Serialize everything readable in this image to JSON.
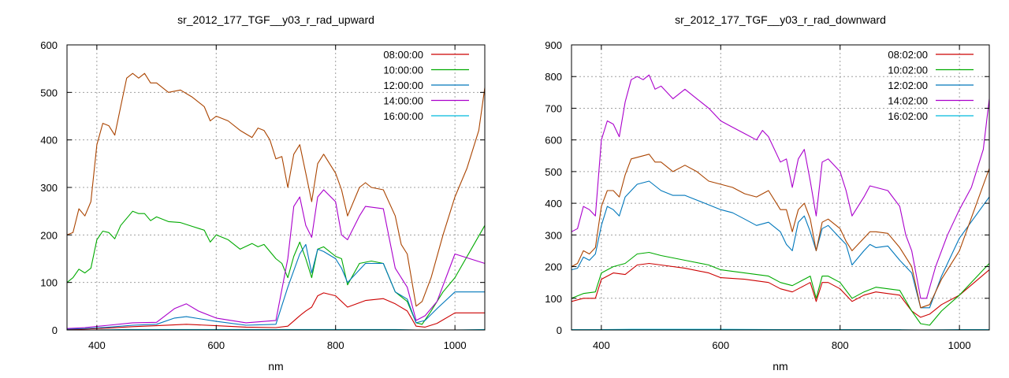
{
  "chart_data": [
    {
      "type": "line",
      "title": "sr_2012_177_TGF__y03_r_rad_upward",
      "xlabel": "nm",
      "ylabel": "",
      "xlim": [
        350,
        1050
      ],
      "ylim": [
        0,
        600
      ],
      "xticks": [
        400,
        600,
        800,
        1000
      ],
      "yticks": [
        0,
        100,
        200,
        300,
        400,
        500,
        600
      ],
      "grid": true,
      "legend": "top-right",
      "series": [
        {
          "name": "08:00:00",
          "color": "#cc0000",
          "x": [
            350,
            380,
            420,
            460,
            500,
            550,
            600,
            650,
            700,
            720,
            740,
            750,
            760,
            770,
            780,
            800,
            820,
            850,
            880,
            900,
            920,
            935,
            950,
            970,
            1000,
            1050
          ],
          "y": [
            1,
            2,
            4,
            7,
            9,
            12,
            9,
            6,
            5,
            8,
            30,
            40,
            48,
            72,
            78,
            72,
            48,
            62,
            66,
            55,
            40,
            8,
            6,
            14,
            36,
            36
          ]
        },
        {
          "name": "10:00:00",
          "color": "#00aa00",
          "x": [
            350,
            360,
            370,
            380,
            390,
            400,
            410,
            420,
            430,
            440,
            460,
            470,
            480,
            490,
            500,
            520,
            540,
            560,
            580,
            590,
            600,
            620,
            640,
            660,
            670,
            680,
            700,
            710,
            720,
            730,
            740,
            750,
            760,
            770,
            780,
            800,
            810,
            820,
            840,
            860,
            880,
            900,
            910,
            920,
            935,
            945,
            960,
            980,
            1000,
            1050
          ],
          "y": [
            100,
            110,
            128,
            120,
            130,
            190,
            208,
            205,
            192,
            220,
            250,
            245,
            245,
            230,
            238,
            228,
            226,
            218,
            210,
            185,
            200,
            190,
            170,
            182,
            175,
            180,
            150,
            140,
            110,
            155,
            185,
            150,
            110,
            170,
            175,
            155,
            150,
            95,
            140,
            145,
            140,
            80,
            70,
            60,
            15,
            12,
            40,
            80,
            110,
            220
          ]
        },
        {
          "name": "12:00:00",
          "color": "#0077bb",
          "x": [
            350,
            380,
            420,
            460,
            500,
            530,
            550,
            570,
            600,
            650,
            700,
            720,
            740,
            750,
            760,
            770,
            780,
            800,
            810,
            820,
            850,
            880,
            900,
            920,
            935,
            950,
            970,
            1000,
            1050
          ],
          "y": [
            2,
            3,
            6,
            10,
            12,
            25,
            28,
            24,
            18,
            10,
            12,
            90,
            160,
            180,
            120,
            170,
            165,
            150,
            130,
            100,
            140,
            140,
            80,
            65,
            15,
            20,
            45,
            80,
            80
          ]
        },
        {
          "name": "14:00:00",
          "color": "#aa00cc",
          "x": [
            350,
            380,
            420,
            460,
            500,
            530,
            550,
            570,
            600,
            650,
            700,
            720,
            730,
            740,
            750,
            760,
            770,
            780,
            800,
            810,
            820,
            840,
            850,
            880,
            900,
            920,
            935,
            950,
            970,
            1000,
            1050
          ],
          "y": [
            3,
            5,
            10,
            15,
            16,
            45,
            55,
            40,
            25,
            15,
            20,
            150,
            260,
            280,
            220,
            195,
            280,
            295,
            270,
            200,
            190,
            240,
            260,
            255,
            130,
            90,
            20,
            30,
            60,
            160,
            140
          ]
        },
        {
          "name": "16:00:00",
          "color": "#00bbdd",
          "x": [
            350,
            400,
            450,
            500,
            600,
            700,
            750,
            800,
            900,
            935,
            1000,
            1050
          ],
          "y": [
            0,
            0,
            1,
            1,
            1,
            1,
            1,
            1,
            1,
            0,
            0,
            1
          ]
        },
        {
          "name": "",
          "color": "#aa4400",
          "x": [
            350,
            360,
            370,
            380,
            390,
            400,
            410,
            420,
            430,
            440,
            450,
            460,
            470,
            480,
            490,
            500,
            520,
            540,
            560,
            580,
            590,
            600,
            620,
            640,
            660,
            670,
            680,
            690,
            700,
            710,
            720,
            730,
            740,
            750,
            760,
            770,
            780,
            800,
            810,
            820,
            840,
            850,
            860,
            880,
            900,
            910,
            920,
            935,
            945,
            960,
            980,
            1000,
            1020,
            1040,
            1050
          ],
          "y": [
            200,
            205,
            255,
            240,
            270,
            390,
            435,
            430,
            410,
            470,
            530,
            540,
            530,
            540,
            520,
            520,
            500,
            505,
            490,
            470,
            440,
            450,
            440,
            420,
            405,
            425,
            420,
            400,
            360,
            365,
            300,
            370,
            390,
            330,
            270,
            350,
            370,
            330,
            295,
            240,
            300,
            310,
            300,
            295,
            240,
            180,
            160,
            50,
            60,
            110,
            200,
            280,
            340,
            420,
            510
          ]
        }
      ]
    },
    {
      "type": "line",
      "title": "sr_2012_177_TGF__y03_r_rad_downward",
      "xlabel": "nm",
      "ylabel": "",
      "xlim": [
        350,
        1050
      ],
      "ylim": [
        0,
        900
      ],
      "xticks": [
        400,
        600,
        800,
        1000
      ],
      "yticks": [
        0,
        100,
        200,
        300,
        400,
        500,
        600,
        700,
        800,
        900
      ],
      "grid": true,
      "legend": "top-right",
      "series": [
        {
          "name": "08:02:00",
          "color": "#cc0000",
          "x": [
            350,
            370,
            390,
            400,
            420,
            440,
            460,
            480,
            500,
            540,
            580,
            600,
            640,
            680,
            700,
            720,
            740,
            750,
            760,
            770,
            780,
            800,
            820,
            840,
            860,
            900,
            920,
            935,
            950,
            970,
            1000,
            1050
          ],
          "y": [
            90,
            100,
            100,
            160,
            180,
            175,
            205,
            210,
            205,
            195,
            180,
            165,
            160,
            150,
            130,
            120,
            140,
            150,
            90,
            150,
            150,
            130,
            90,
            110,
            120,
            110,
            60,
            40,
            50,
            80,
            110,
            190
          ]
        },
        {
          "name": "10:02:00",
          "color": "#00aa00",
          "x": [
            350,
            370,
            390,
            400,
            420,
            440,
            460,
            480,
            500,
            540,
            580,
            600,
            640,
            680,
            700,
            720,
            740,
            750,
            760,
            770,
            780,
            800,
            820,
            840,
            860,
            900,
            920,
            935,
            950,
            970,
            1000,
            1050
          ],
          "y": [
            100,
            115,
            120,
            180,
            200,
            210,
            240,
            245,
            235,
            220,
            205,
            190,
            180,
            170,
            150,
            140,
            160,
            170,
            100,
            170,
            170,
            150,
            100,
            120,
            135,
            125,
            60,
            20,
            15,
            60,
            110,
            210
          ]
        },
        {
          "name": "12:02:00",
          "color": "#0077bb",
          "x": [
            350,
            360,
            370,
            380,
            390,
            400,
            410,
            420,
            430,
            440,
            460,
            470,
            480,
            500,
            520,
            540,
            560,
            580,
            600,
            620,
            640,
            660,
            680,
            700,
            710,
            720,
            730,
            740,
            750,
            760,
            770,
            780,
            800,
            810,
            820,
            840,
            850,
            860,
            880,
            900,
            920,
            935,
            950,
            970,
            1000,
            1050
          ],
          "y": [
            190,
            195,
            230,
            220,
            240,
            330,
            390,
            380,
            360,
            420,
            460,
            465,
            470,
            440,
            425,
            425,
            410,
            395,
            380,
            370,
            350,
            330,
            340,
            310,
            270,
            250,
            340,
            360,
            310,
            250,
            320,
            330,
            290,
            270,
            205,
            250,
            270,
            260,
            265,
            220,
            180,
            70,
            70,
            170,
            290,
            420
          ]
        },
        {
          "name": "14:02:00",
          "color": "#aa00cc",
          "x": [
            350,
            360,
            370,
            380,
            390,
            400,
            410,
            420,
            430,
            440,
            450,
            460,
            470,
            480,
            490,
            500,
            520,
            540,
            560,
            580,
            600,
            620,
            640,
            660,
            670,
            680,
            700,
            710,
            720,
            730,
            740,
            750,
            760,
            770,
            780,
            800,
            810,
            820,
            840,
            850,
            860,
            880,
            900,
            910,
            920,
            935,
            945,
            960,
            980,
            1000,
            1020,
            1040,
            1050
          ],
          "y": [
            310,
            320,
            390,
            380,
            360,
            600,
            660,
            650,
            610,
            720,
            790,
            800,
            790,
            805,
            760,
            770,
            730,
            760,
            730,
            700,
            660,
            640,
            620,
            600,
            630,
            610,
            530,
            540,
            450,
            540,
            570,
            470,
            360,
            530,
            540,
            500,
            440,
            360,
            420,
            455,
            450,
            440,
            390,
            300,
            250,
            100,
            100,
            200,
            300,
            380,
            450,
            570,
            730
          ]
        },
        {
          "name": "16:02:00",
          "color": "#00bbdd",
          "x": [
            350,
            400,
            450,
            500,
            600,
            700,
            750,
            800,
            900,
            935,
            1000,
            1050
          ],
          "y": [
            1,
            1,
            2,
            2,
            2,
            1,
            1,
            1,
            1,
            0,
            1,
            1
          ]
        },
        {
          "name": "",
          "color": "#aa4400",
          "x": [
            350,
            360,
            370,
            380,
            390,
            400,
            410,
            420,
            430,
            440,
            450,
            460,
            470,
            480,
            490,
            500,
            520,
            540,
            560,
            580,
            600,
            620,
            640,
            660,
            680,
            700,
            710,
            720,
            730,
            740,
            750,
            760,
            770,
            780,
            800,
            810,
            820,
            840,
            850,
            860,
            880,
            900,
            920,
            935,
            950,
            970,
            1000,
            1050
          ],
          "y": [
            200,
            210,
            250,
            240,
            260,
            390,
            440,
            440,
            420,
            490,
            540,
            545,
            550,
            555,
            530,
            530,
            500,
            520,
            500,
            470,
            460,
            450,
            430,
            420,
            440,
            380,
            380,
            310,
            380,
            400,
            350,
            250,
            340,
            350,
            320,
            280,
            250,
            290,
            310,
            310,
            305,
            260,
            200,
            70,
            80,
            160,
            250,
            510
          ]
        }
      ]
    }
  ]
}
